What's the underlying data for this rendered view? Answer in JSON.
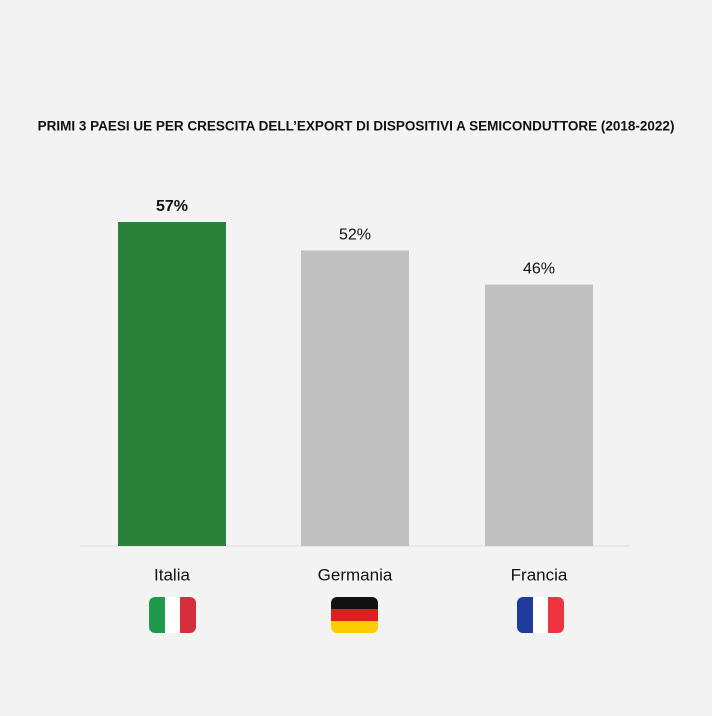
{
  "chart_data": {
    "type": "bar",
    "title": "PRIMI 3 PAESI UE PER CRESCITA DELL’EXPORT DI DISPOSITIVI A SEMICONDUTTORE (2018-2022)",
    "categories": [
      "Italia",
      "Germania",
      "Francia"
    ],
    "values": [
      57,
      52,
      46
    ],
    "value_labels": [
      "57%",
      "52%",
      "46%"
    ],
    "colors": [
      "#2a8138",
      "#c0c0c0",
      "#c0c0c0"
    ]
  }
}
